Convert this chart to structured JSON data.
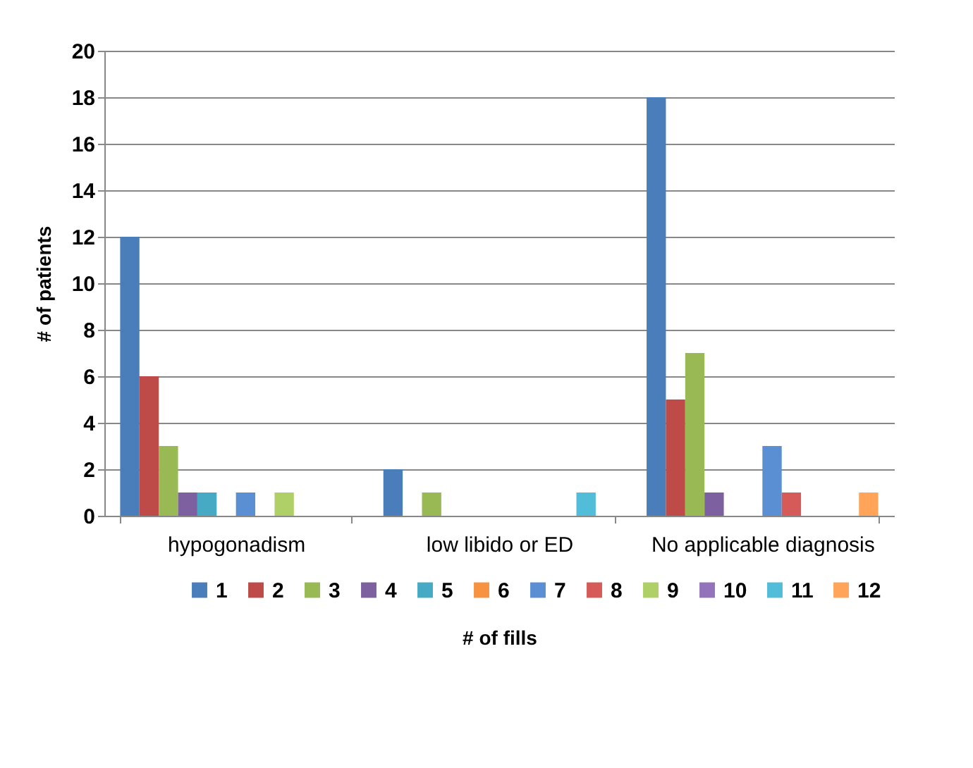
{
  "chart_data": {
    "type": "bar",
    "xlabel": "# of fills",
    "ylabel": "# of patients",
    "categories": [
      "hypogonadism",
      "low libido or ED",
      "No applicable diagnosis"
    ],
    "ylim": [
      0,
      20
    ],
    "yticks": [
      0,
      2,
      4,
      6,
      8,
      10,
      12,
      14,
      16,
      18,
      20
    ],
    "grid": "y",
    "legend": "bottom",
    "series": [
      {
        "name": "1",
        "color": "#4a7ebb",
        "values": [
          12,
          2,
          18
        ]
      },
      {
        "name": "2",
        "color": "#be4b48",
        "values": [
          6,
          0,
          5
        ]
      },
      {
        "name": "3",
        "color": "#98b954",
        "values": [
          3,
          1,
          7
        ]
      },
      {
        "name": "4",
        "color": "#7d60a0",
        "values": [
          1,
          0,
          1
        ]
      },
      {
        "name": "5",
        "color": "#46aac5",
        "values": [
          1,
          0,
          0
        ]
      },
      {
        "name": "6",
        "color": "#f69240",
        "values": [
          0,
          0,
          0
        ]
      },
      {
        "name": "7",
        "color": "#5b8fd4",
        "values": [
          1,
          0,
          3
        ]
      },
      {
        "name": "8",
        "color": "#d65a57",
        "values": [
          0,
          0,
          1
        ]
      },
      {
        "name": "9",
        "color": "#afd066",
        "values": [
          1,
          0,
          0
        ]
      },
      {
        "name": "10",
        "color": "#9373ba",
        "values": [
          0,
          0,
          0
        ]
      },
      {
        "name": "11",
        "color": "#52bdd9",
        "values": [
          0,
          1,
          0
        ]
      },
      {
        "name": "12",
        "color": "#ffa458",
        "values": [
          0,
          0,
          1
        ]
      }
    ]
  }
}
